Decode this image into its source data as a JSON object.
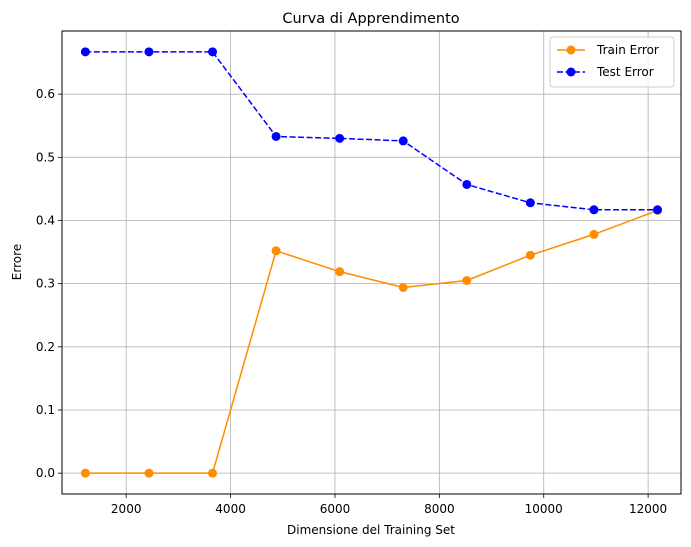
{
  "chart_data": {
    "type": "line",
    "title": "Curva di Apprendimento",
    "xlabel": "Dimensione del Training Set",
    "ylabel": "Errore",
    "x": [
      1218,
      2436,
      3654,
      4872,
      6090,
      7308,
      8526,
      9744,
      10962,
      12180
    ],
    "xlim": [
      770,
      12630
    ],
    "ylim": [
      -0.033,
      0.7
    ],
    "xticks": [
      2000,
      4000,
      6000,
      8000,
      10000,
      12000
    ],
    "yticks": [
      0.0,
      0.1,
      0.2,
      0.3,
      0.4,
      0.5,
      0.6
    ],
    "xtick_labels": [
      "2000",
      "4000",
      "6000",
      "8000",
      "10000",
      "12000"
    ],
    "ytick_labels": [
      "0.0",
      "0.1",
      "0.2",
      "0.3",
      "0.4",
      "0.5",
      "0.6"
    ],
    "grid": true,
    "legend_position": "top-right",
    "series": [
      {
        "name": "Train Error",
        "color": "#ff8c00",
        "line_style": "solid",
        "marker": "circle",
        "values": [
          0.0,
          0.0,
          0.0,
          0.352,
          0.319,
          0.294,
          0.305,
          0.345,
          0.378,
          0.416
        ]
      },
      {
        "name": "Test Error",
        "color": "#0000ff",
        "line_style": "dashed",
        "marker": "circle",
        "values": [
          0.667,
          0.667,
          0.667,
          0.533,
          0.53,
          0.526,
          0.457,
          0.428,
          0.417,
          0.417
        ]
      }
    ]
  }
}
